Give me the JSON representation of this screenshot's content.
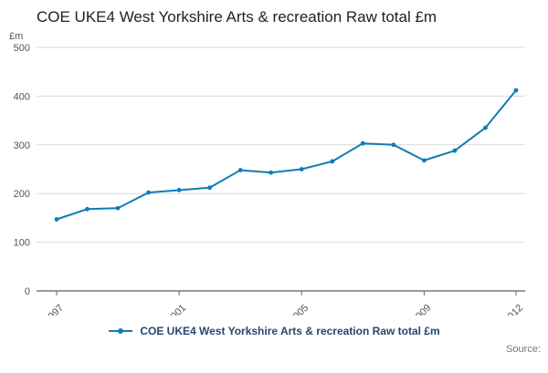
{
  "page": {
    "title": "COE UKE4 West Yorkshire Arts & recreation Raw total £m",
    "source_label": "Source:"
  },
  "chart_data": {
    "type": "line",
    "title": "COE UKE4 West Yorkshire Arts & recreation Raw total £m",
    "xlabel": "",
    "ylabel": "£m",
    "x": [
      1997,
      1998,
      1999,
      2000,
      2001,
      2002,
      2003,
      2004,
      2005,
      2006,
      2007,
      2008,
      2009,
      2010,
      2011,
      2012
    ],
    "values": [
      147,
      168,
      170,
      202,
      207,
      212,
      248,
      243,
      250,
      266,
      303,
      300,
      268,
      288,
      335,
      412
    ],
    "ylim": [
      0,
      500
    ],
    "yticks": [
      0,
      100,
      200,
      300,
      400,
      500
    ],
    "xticks": [
      1997,
      2001,
      2005,
      2009,
      2012
    ],
    "grid": true,
    "legend_position": "bottom",
    "legend_label": "COE UKE4 West Yorkshire Arts & recreation Raw total £m",
    "line_color": "#0f7cb8",
    "grid_color": "#d9d9d9",
    "axis_color": "#333333"
  }
}
